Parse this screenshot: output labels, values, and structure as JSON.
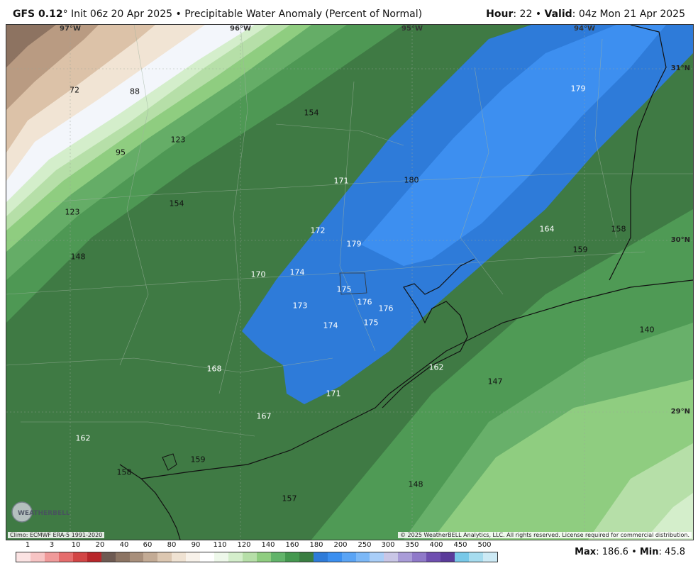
{
  "header": {
    "model": "GFS 0.12",
    "degree": "°",
    "init": "Init 06z 20 Apr 2025",
    "sep": "•",
    "product": "Precipitable Water Anomaly (Percent of Normal)",
    "hour_label": "Hour",
    "hour": "22",
    "valid_label": "Valid",
    "valid": "04z Mon 21 Apr 2025"
  },
  "map": {
    "lon_labels": [
      "97°W",
      "96°W",
      "95°W",
      "94°W"
    ],
    "lat_labels": [
      "31°N",
      "30°N",
      "29°N"
    ],
    "values": [
      "72",
      "88",
      "154",
      "179",
      "123",
      "95",
      "171",
      "180",
      "154",
      "123",
      "172",
      "179",
      "164",
      "158",
      "148",
      "159",
      "170",
      "174",
      "175",
      "176",
      "176",
      "173",
      "174",
      "175",
      "140",
      "168",
      "162",
      "147",
      "171",
      "167",
      "162",
      "159",
      "158",
      "148",
      "157"
    ],
    "climo": "Climo: ECMWF ERA-5 1991-2020",
    "copyright": "© 2025 WeatherBELL Analytics, LLC. All rights reserved. License required for commercial distribution.",
    "logo_text": "WEATHERBELL"
  },
  "legend": {
    "labels": [
      "1",
      "3",
      "10",
      "20",
      "40",
      "60",
      "80",
      "90",
      "110",
      "120",
      "140",
      "160",
      "180",
      "200",
      "250",
      "300",
      "350",
      "400",
      "450",
      "500"
    ],
    "colors": [
      "#fbe3e3",
      "#f7c4c4",
      "#f09a9a",
      "#e56d6d",
      "#d24545",
      "#b8272b",
      "#6e5a52",
      "#8c7463",
      "#a88f7b",
      "#c3ab95",
      "#dcc7b1",
      "#efe2d2",
      "#f8f2ea",
      "#ffffff",
      "#eef8ea",
      "#d4eecb",
      "#b6dfa8",
      "#8fcd80",
      "#62b46a",
      "#44984f",
      "#3a7e42",
      "#2e7bd9",
      "#3b8ff0",
      "#5aa4f5",
      "#7cb8f7",
      "#a9cef8",
      "#c9c6e6",
      "#a99cd8",
      "#8f79c9",
      "#6f4fb0",
      "#5a3b9a",
      "#78c8e8",
      "#a6dcef",
      "#cdeaf5"
    ],
    "max_label": "Max",
    "max": "186.6",
    "min_label": "Min",
    "min": "45.8"
  }
}
